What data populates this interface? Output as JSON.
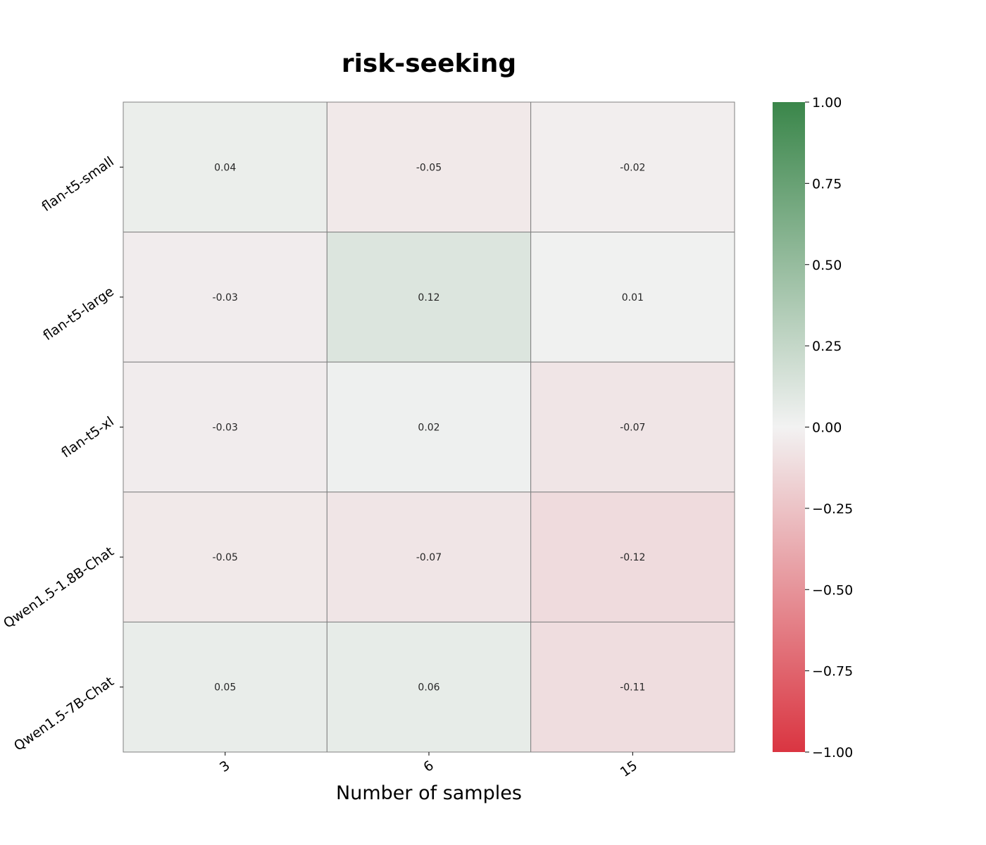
{
  "chart_data": {
    "type": "heatmap",
    "title": "risk-seeking",
    "xlabel": "Number of samples",
    "ylabel": "",
    "x_categories": [
      "3",
      "6",
      "15"
    ],
    "y_categories": [
      "flan-t5-small",
      "flan-t5-large",
      "flan-t5-xl",
      "Qwen1.5-1.8B-Chat",
      "Qwen1.5-7B-Chat"
    ],
    "values": [
      [
        0.04,
        -0.05,
        -0.02
      ],
      [
        -0.03,
        0.12,
        0.01
      ],
      [
        -0.03,
        0.02,
        -0.07
      ],
      [
        -0.05,
        -0.07,
        -0.12
      ],
      [
        0.05,
        0.06,
        -0.11
      ]
    ],
    "value_labels": [
      [
        "0.04",
        "-0.05",
        "-0.02"
      ],
      [
        "-0.03",
        "0.12",
        "0.01"
      ],
      [
        "-0.03",
        "0.02",
        "-0.07"
      ],
      [
        "-0.05",
        "-0.07",
        "-0.12"
      ],
      [
        "0.05",
        "0.06",
        "-0.11"
      ]
    ],
    "colorbar": {
      "range": [
        -1.0,
        1.0
      ],
      "ticks": [
        1.0,
        0.75,
        0.5,
        0.25,
        0.0,
        -0.25,
        -0.5,
        -0.75,
        -1.0
      ],
      "tick_labels": [
        "1.00",
        "0.75",
        "0.50",
        "0.25",
        "0.00",
        "−0.25",
        "−0.50",
        "−0.75",
        "−1.00"
      ],
      "colors": {
        "min": "#da3541",
        "mid": "#f2f2f2",
        "max": "#3a864a"
      }
    },
    "grid_color": "#808080"
  }
}
